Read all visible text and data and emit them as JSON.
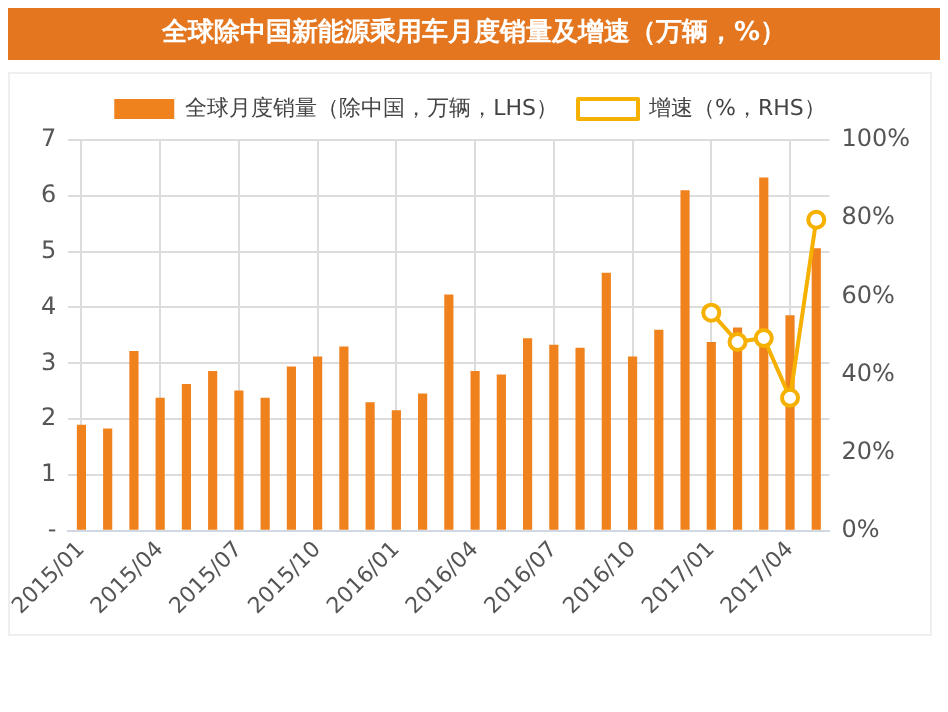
{
  "chart_data": {
    "type": "bar",
    "title": "全球除中国新能源乘用车月度销量及增速（万辆，%）",
    "categories": [
      "2015/01",
      null,
      null,
      "2015/04",
      null,
      null,
      "2015/07",
      null,
      null,
      "2015/10",
      null,
      null,
      "2016/01",
      null,
      null,
      "2016/04",
      null,
      null,
      "2016/07",
      null,
      null,
      "2016/10",
      null,
      null,
      "2017/01",
      null,
      null,
      "2017/04",
      null
    ],
    "series": [
      {
        "name": "全球月度销量（除中国，万辆，LHS）",
        "color": "#f0821e",
        "values": [
          1.9,
          1.83,
          3.22,
          2.38,
          2.63,
          2.86,
          2.51,
          2.38,
          2.94,
          3.12,
          3.3,
          2.3,
          2.16,
          2.46,
          4.23,
          2.86,
          2.8,
          3.45,
          3.33,
          3.28,
          4.62,
          3.12,
          3.6,
          6.1,
          3.38,
          3.64,
          6.33,
          3.86,
          5.06
        ]
      },
      {
        "name": "增速（%，RHS）",
        "type": "line",
        "axis": "y2",
        "color": "#f5b000",
        "marker": "circle",
        "values": [
          null,
          null,
          null,
          null,
          null,
          null,
          null,
          null,
          null,
          null,
          null,
          null,
          null,
          null,
          null,
          null,
          null,
          null,
          null,
          null,
          null,
          null,
          null,
          null,
          55.8,
          48.3,
          49.3,
          34,
          79.6
        ]
      }
    ],
    "ylim": [
      0,
      7
    ],
    "yticks": [
      {
        "value": 0,
        "label": "-"
      },
      1,
      2,
      3,
      4,
      5,
      6,
      7
    ],
    "y2lim": [
      0,
      100
    ],
    "y2ticks": [
      {
        "value": 0,
        "label": "0%"
      },
      {
        "value": 20,
        "label": "20%"
      },
      {
        "value": 40,
        "label": "40%"
      },
      {
        "value": 60,
        "label": "60%"
      },
      {
        "value": 80,
        "label": "80%"
      },
      {
        "value": 100,
        "label": "100%"
      }
    ],
    "grid": true,
    "legend": "top"
  }
}
